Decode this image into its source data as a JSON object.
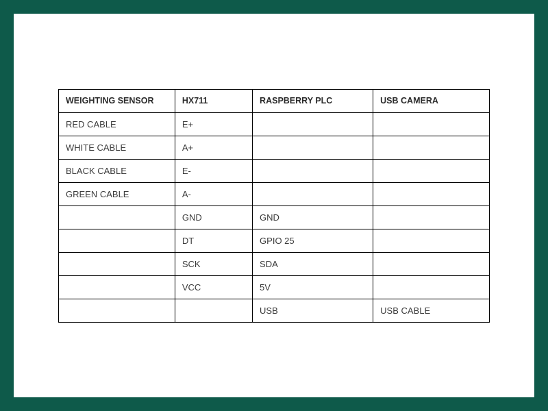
{
  "table": {
    "type": "table",
    "border_color": "#000000",
    "frame_bg": "#0e5a4a",
    "page_bg": "#ffffff",
    "text_color": "#3b3b3b",
    "header_fontsize": 12.5,
    "cell_fontsize": 13,
    "columns": [
      {
        "label": "WEIGHTING SENSOR",
        "width_pct": 27
      },
      {
        "label": "HX711",
        "width_pct": 18
      },
      {
        "label": "RASPBERRY PLC",
        "width_pct": 28
      },
      {
        "label": "USB CAMERA",
        "width_pct": 27
      }
    ],
    "rows": [
      [
        "RED CABLE",
        "E+",
        "",
        ""
      ],
      [
        "WHITE CABLE",
        "A+",
        "",
        ""
      ],
      [
        "BLACK CABLE",
        "E-",
        "",
        ""
      ],
      [
        "GREEN CABLE",
        "A-",
        "",
        ""
      ],
      [
        "",
        "GND",
        "GND",
        ""
      ],
      [
        "",
        "DT",
        "GPIO 25",
        ""
      ],
      [
        "",
        "SCK",
        "SDA",
        ""
      ],
      [
        "",
        "VCC",
        "5V",
        ""
      ],
      [
        "",
        "",
        "USB",
        "USB CABLE"
      ]
    ]
  }
}
